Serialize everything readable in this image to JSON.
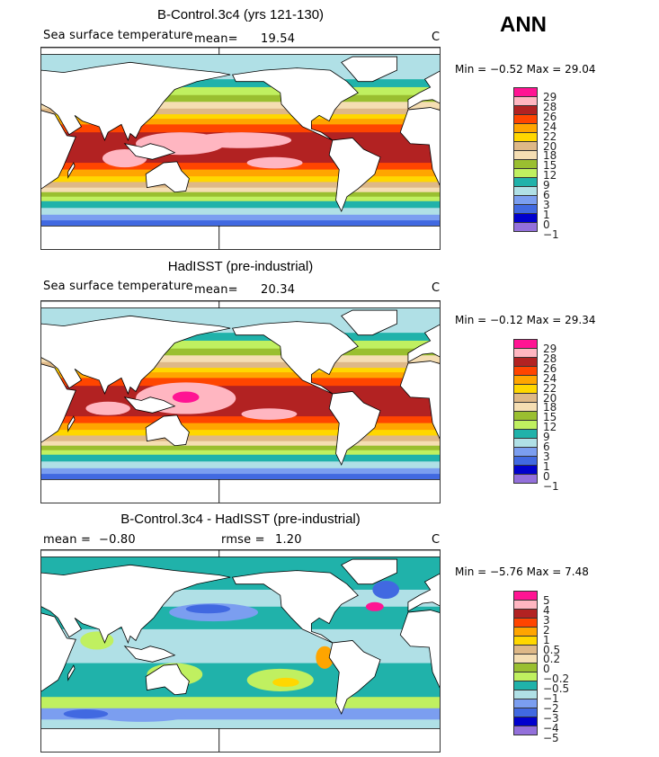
{
  "season": "ANN",
  "panels": [
    {
      "title": "B-Control.3c4 (yrs 121-130)",
      "variable": "Sea surface temperature",
      "mean_label": "mean=",
      "mean": "19.54",
      "units": "C",
      "min_label": "Min =",
      "min": "−0.52",
      "max_label": "Max =",
      "max": "29.04"
    },
    {
      "title": "HadISST (pre-industrial)",
      "variable": "Sea surface temperature",
      "mean_label": "mean=",
      "mean": "20.34",
      "units": "C",
      "min_label": "Min =",
      "min": "−0.12",
      "max_label": "Max =",
      "max": "29.34"
    },
    {
      "title": "B-Control.3c4 - HadISST (pre-industrial)",
      "mean_label": "mean =",
      "mean": "−0.80",
      "rmse_label": "rmse =",
      "rmse": "1.20",
      "units": "C",
      "min_label": "Min =",
      "min": "−5.76",
      "max_label": "Max =",
      "max": "7.48"
    }
  ],
  "colorbar_colors": [
    "#ff1493",
    "#ffb6c1",
    "#b22222",
    "#ff4500",
    "#ffa500",
    "#ffd700",
    "#deb887",
    "#f5deb3",
    "#9abf30",
    "#c0f060",
    "#20b2aa",
    "#b0e0e6",
    "#7b9ef0",
    "#4169e1",
    "#0000cd",
    "#9370db"
  ],
  "colorbar_sst_labels": [
    "29",
    "28",
    "26",
    "24",
    "22",
    "20",
    "18",
    "15",
    "12",
    "9",
    "6",
    "3",
    "1",
    "0",
    "−1"
  ],
  "colorbar_diff_labels": [
    "5",
    "4",
    "3",
    "2",
    "1",
    "0.5",
    "0.2",
    "0",
    "−0.2",
    "−0.5",
    "−1",
    "−2",
    "−3",
    "−4",
    "−5"
  ]
}
